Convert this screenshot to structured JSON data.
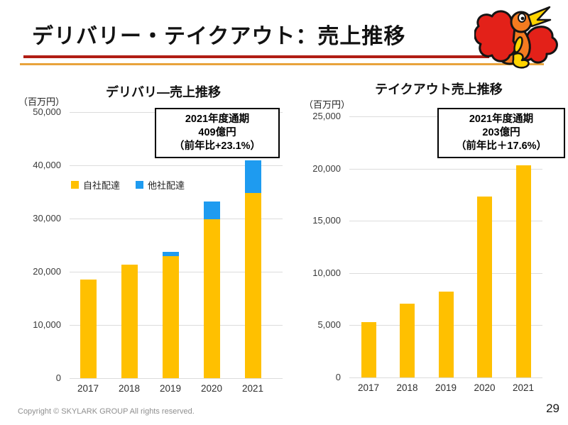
{
  "slide": {
    "title": "デリバリー・テイクアウト：売上推移",
    "footer": "Copyright © SKYLARK GROUP All rights reserved.",
    "page_number": "29",
    "rule_red_color": "#B01D14",
    "rule_orange_color": "#E8A33C",
    "logo_name": "skylark-bird-logo"
  },
  "colors": {
    "own_delivery": "#FFC000",
    "other_delivery": "#1E9BF0",
    "gridline": "#DCDCDC"
  },
  "chart_data": [
    {
      "type": "bar",
      "stacked": true,
      "title": "デリバリ―売上推移",
      "unit": "（百万円）",
      "categories": [
        "2017",
        "2018",
        "2019",
        "2020",
        "2021"
      ],
      "series": [
        {
          "name": "自社配達",
          "color": "#FFC000",
          "values": [
            18500,
            21400,
            22900,
            29900,
            34800
          ]
        },
        {
          "name": "他社配達",
          "color": "#1E9BF0",
          "values": [
            0,
            0,
            800,
            3300,
            6100
          ]
        }
      ],
      "ylim": [
        0,
        50000
      ],
      "yticks": [
        {
          "value": 0,
          "label": "0"
        },
        {
          "value": 10000,
          "label": "10,000"
        },
        {
          "value": 20000,
          "label": "20,000"
        },
        {
          "value": 30000,
          "label": "30,000"
        },
        {
          "value": 40000,
          "label": "40,000"
        },
        {
          "value": 50000,
          "label": "50,000"
        }
      ],
      "grid": true,
      "legend_position": "inside-upper-left",
      "callout": {
        "line1": "2021年度通期",
        "line2": "409億円",
        "line3": "（前年比+23.1%）"
      }
    },
    {
      "type": "bar",
      "stacked": false,
      "title": "テイクアウト売上推移",
      "unit": "（百万円）",
      "categories": [
        "2017",
        "2018",
        "2019",
        "2020",
        "2021"
      ],
      "series": [
        {
          "name": "テイクアウト",
          "color": "#FFC000",
          "values": [
            5300,
            7100,
            8200,
            17300,
            20300
          ]
        }
      ],
      "ylim": [
        0,
        25000
      ],
      "yticks": [
        {
          "value": 0,
          "label": "0"
        },
        {
          "value": 5000,
          "label": "5,000"
        },
        {
          "value": 10000,
          "label": "10,000"
        },
        {
          "value": 15000,
          "label": "15,000"
        },
        {
          "value": 20000,
          "label": "20,000"
        },
        {
          "value": 25000,
          "label": "25,000"
        }
      ],
      "grid": true,
      "legend_position": "none",
      "callout": {
        "line1": "2021年度通期",
        "line2": "203億円",
        "line3": "（前年比＋17.6%）"
      }
    }
  ]
}
